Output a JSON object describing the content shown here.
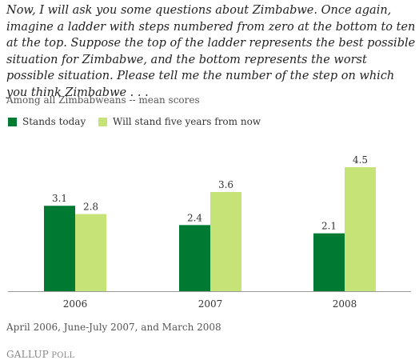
{
  "question": "Now, I will ask you some questions about Zimbabwe. Once again, imagine a ladder with steps numbered from zero at the bottom to ten at the top. Suppose the top of the ladder represents the best possible situation for Zimbabwe, and the bottom represents the worst possible situation. Please tell me the number of the step on which you think Zimbabwe . . .",
  "subtitle": "Among all Zimbabweans -- mean scores",
  "footnote": "April 2006, June-July 2007, and March 2008",
  "brand": {
    "part1": "GALLUP",
    "part2": " POLL"
  },
  "colors": {
    "stands_today": "#007a33",
    "five_years": "#c6e377",
    "axis": "#999999"
  },
  "chart_data": {
    "type": "bar",
    "categories": [
      "2006",
      "2007",
      "2008"
    ],
    "series": [
      {
        "name": "Stands today",
        "values": [
          3.1,
          2.4,
          2.1
        ],
        "labels": [
          "3.1",
          "2.4",
          "2.1"
        ]
      },
      {
        "name": "Will stand five years from now",
        "values": [
          2.8,
          3.6,
          4.5
        ],
        "labels": [
          "2.8",
          "3.6",
          "4.5"
        ]
      }
    ],
    "title": "",
    "xlabel": "",
    "ylabel": "",
    "ylim": [
      0,
      4.5
    ],
    "grid": false,
    "legend_position": "top-left"
  }
}
